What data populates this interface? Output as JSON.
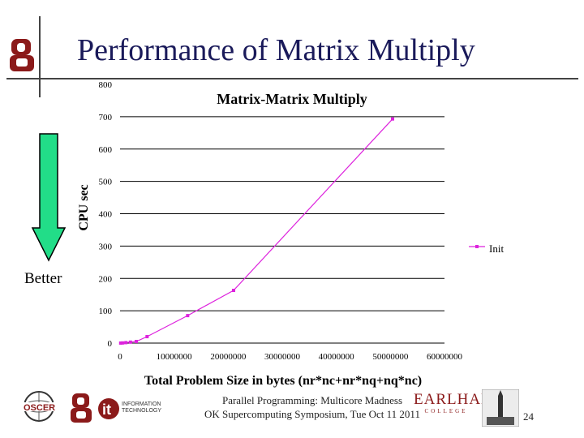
{
  "slide": {
    "title": "Performance of Matrix Multiply",
    "better_label": "Better",
    "footer_line1": "Parallel Programming: Multicore Madness",
    "footer_line2": "OK Supercomputing Symposium, Tue Oct 11 2011",
    "slide_number": "24",
    "logos": {
      "left": "ou-logo-icon",
      "bottom": [
        "oscer-logo-icon",
        "ou-logo-icon",
        "ou-it-logo-icon",
        "earlham-college-logo-icon",
        "tower-photo-icon"
      ],
      "earlham_text": "EARLHAM",
      "earlham_sub": "COLLEGE",
      "it_text": "INFORMATION TECHNOLOGY"
    },
    "arrow_color": "#22dd88"
  },
  "chart_data": {
    "type": "line",
    "title": "Matrix-Matrix Multiply",
    "xlabel": "Total Problem Size in bytes (nr*nc+nr*nq+nq*nc)",
    "ylabel": "CPU sec",
    "xlim": [
      0,
      60000000
    ],
    "ylim": [
      0,
      800
    ],
    "x_ticks": [
      0,
      10000000,
      20000000,
      30000000,
      40000000,
      50000000,
      60000000
    ],
    "y_ticks": [
      0,
      100,
      200,
      300,
      400,
      500,
      600,
      700,
      800
    ],
    "grid": "horizontal",
    "legend": "right",
    "series": [
      {
        "name": "Init",
        "color": "#dd22dd",
        "x": [
          120000,
          480000,
          1080000,
          1920000,
          3000000,
          5000000,
          12500000,
          21000000,
          50400000
        ],
        "y": [
          0.1,
          0.5,
          1.5,
          3,
          5,
          20,
          85,
          163,
          693
        ]
      }
    ]
  }
}
